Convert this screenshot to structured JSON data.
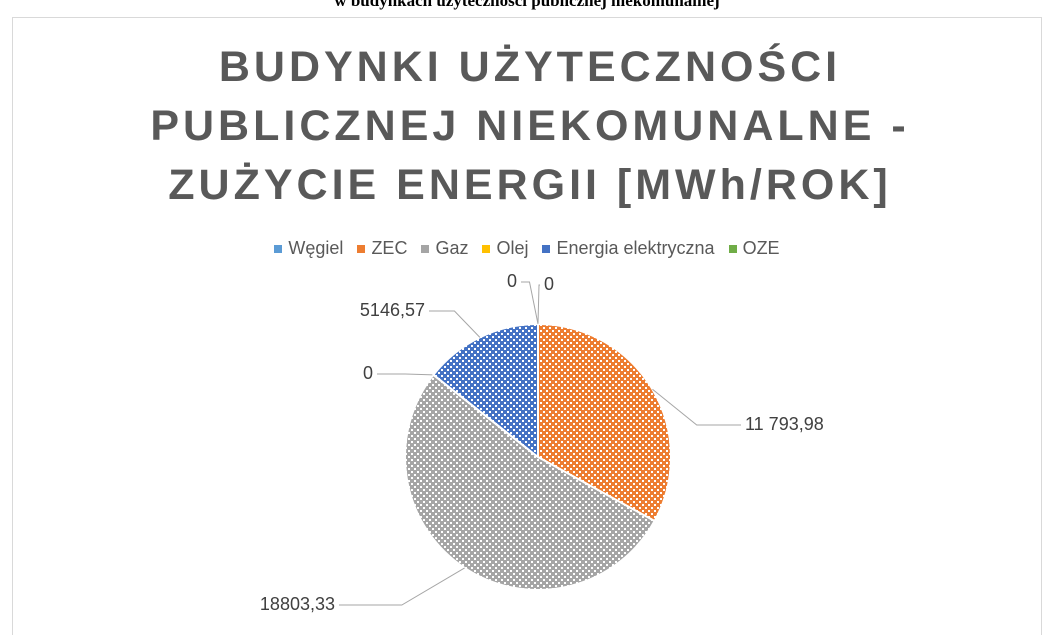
{
  "chart_data": {
    "type": "pie",
    "caption": "w budynkach użyteczności publicznej niekomunalnej",
    "title": "BUDYNKI UŻYTECZNOŚCI PUBLICZNEJ NIEKOMUNALNE - ZUŻYCIE ENERGII [MWh/ROK]",
    "categories": [
      "Węgiel",
      "ZEC",
      "Gaz",
      "Olej",
      "Energia elektryczna",
      "OZE"
    ],
    "values": [
      0,
      11793.98,
      18803.33,
      0,
      5146.57,
      0
    ],
    "value_labels": [
      "0",
      "11 793,98",
      "18803,33",
      "0",
      "5146,57",
      "0"
    ],
    "colors": [
      "#5b9bd5",
      "#ed7d31",
      "#a5a5a5",
      "#ffc000",
      "#4472c4",
      "#70ad47"
    ],
    "legend": "top"
  }
}
